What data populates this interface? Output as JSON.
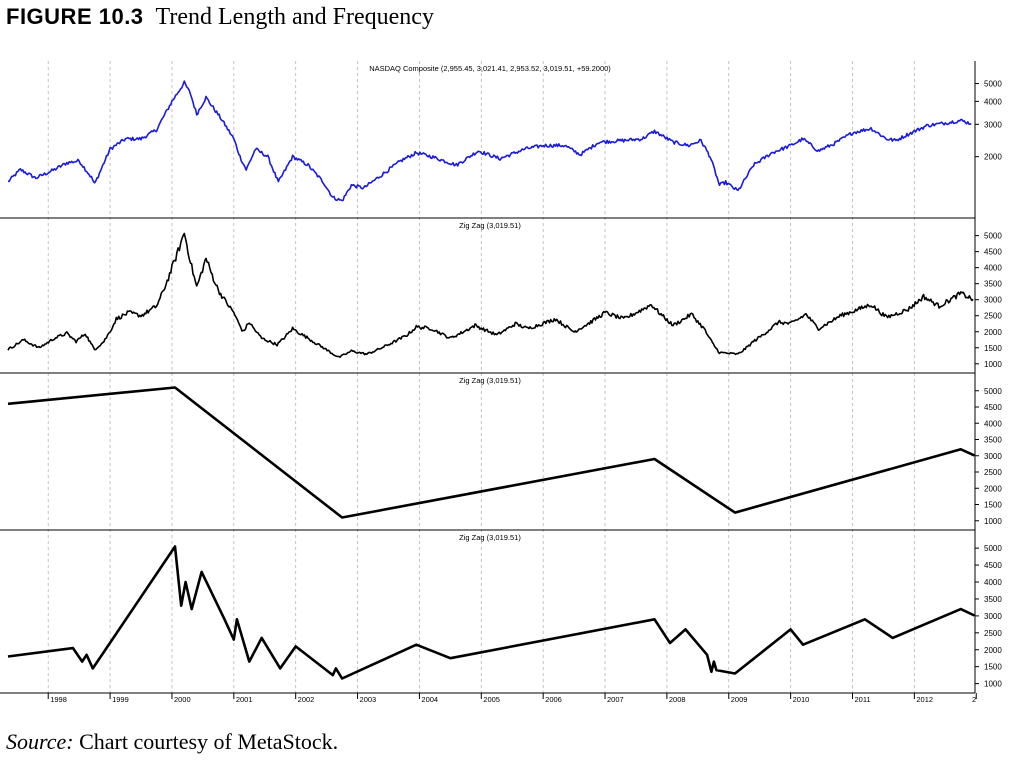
{
  "figure": {
    "number": "FIGURE 10.3",
    "title": "Trend Length and Frequency"
  },
  "caption": {
    "label": "Source:",
    "text": "Chart courtesy of MetaStock."
  },
  "colors": {
    "price_line": "#1a1adf",
    "zigzag_line": "#000000",
    "grid": "#b4b4b4"
  },
  "chart_data": [
    {
      "type": "line",
      "title": "NASDAQ Composite (2,955.45, 3,021.41, 2,953.52, 3,019.51, +59.2000)",
      "scale": "log",
      "ylim": [
        1000,
        6000
      ],
      "y_ticks": [
        2000,
        3000,
        4000,
        5000
      ],
      "grid": "vertical",
      "series": [
        {
          "noise": 0.022,
          "points": [
            [
              1997.35,
              1460
            ],
            [
              1997.55,
              1700
            ],
            [
              1997.8,
              1530
            ],
            [
              1998.1,
              1700
            ],
            [
              1998.3,
              1850
            ],
            [
              1998.5,
              1900
            ],
            [
              1998.7,
              1540
            ],
            [
              1998.75,
              1420
            ],
            [
              1999.0,
              2200
            ],
            [
              1999.25,
              2500
            ],
            [
              1999.5,
              2500
            ],
            [
              1999.75,
              2800
            ],
            [
              2000.0,
              4000
            ],
            [
              2000.2,
              5050
            ],
            [
              2000.3,
              4400
            ],
            [
              2000.4,
              3400
            ],
            [
              2000.55,
              4200
            ],
            [
              2000.8,
              3200
            ],
            [
              2001.0,
              2500
            ],
            [
              2001.1,
              2000
            ],
            [
              2001.2,
              1700
            ],
            [
              2001.35,
              2200
            ],
            [
              2001.55,
              2000
            ],
            [
              2001.72,
              1450
            ],
            [
              2001.95,
              2000
            ],
            [
              2002.2,
              1800
            ],
            [
              2002.45,
              1450
            ],
            [
              2002.6,
              1200
            ],
            [
              2002.75,
              1150
            ],
            [
              2002.9,
              1400
            ],
            [
              2003.1,
              1350
            ],
            [
              2003.4,
              1600
            ],
            [
              2003.7,
              1900
            ],
            [
              2003.95,
              2100
            ],
            [
              2004.2,
              2000
            ],
            [
              2004.6,
              1800
            ],
            [
              2004.95,
              2150
            ],
            [
              2005.3,
              1950
            ],
            [
              2005.7,
              2200
            ],
            [
              2006.0,
              2300
            ],
            [
              2006.35,
              2300
            ],
            [
              2006.6,
              2050
            ],
            [
              2006.9,
              2400
            ],
            [
              2007.3,
              2450
            ],
            [
              2007.6,
              2500
            ],
            [
              2007.8,
              2750
            ],
            [
              2008.1,
              2400
            ],
            [
              2008.35,
              2300
            ],
            [
              2008.55,
              2450
            ],
            [
              2008.7,
              2000
            ],
            [
              2008.85,
              1400
            ],
            [
              2008.95,
              1450
            ],
            [
              2009.15,
              1300
            ],
            [
              2009.4,
              1800
            ],
            [
              2009.7,
              2100
            ],
            [
              2010.0,
              2300
            ],
            [
              2010.2,
              2500
            ],
            [
              2010.45,
              2150
            ],
            [
              2010.7,
              2350
            ],
            [
              2011.0,
              2700
            ],
            [
              2011.3,
              2850
            ],
            [
              2011.55,
              2500
            ],
            [
              2011.7,
              2450
            ],
            [
              2011.9,
              2650
            ],
            [
              2012.2,
              2950
            ],
            [
              2012.5,
              3050
            ],
            [
              2012.75,
              3150
            ],
            [
              2012.92,
              3020
            ]
          ]
        }
      ]
    },
    {
      "type": "line",
      "title": "Zig Zag (3,019.51)",
      "ylim": [
        900,
        5300
      ],
      "y_ticks": [
        1000,
        1500,
        2000,
        2500,
        3000,
        3500,
        4000,
        4500,
        5000
      ],
      "series": [
        {
          "noise": 0.025,
          "points": [
            [
              1997.35,
              1450
            ],
            [
              1997.6,
              1750
            ],
            [
              1997.85,
              1500
            ],
            [
              1998.1,
              1800
            ],
            [
              1998.3,
              1950
            ],
            [
              1998.45,
              1700
            ],
            [
              1998.6,
              1950
            ],
            [
              1998.75,
              1450
            ],
            [
              1998.9,
              1700
            ],
            [
              1999.1,
              2400
            ],
            [
              1999.3,
              2600
            ],
            [
              1999.5,
              2500
            ],
            [
              1999.75,
              2800
            ],
            [
              2000.0,
              4000
            ],
            [
              2000.2,
              5100
            ],
            [
              2000.3,
              4200
            ],
            [
              2000.4,
              3400
            ],
            [
              2000.55,
              4300
            ],
            [
              2000.75,
              3300
            ],
            [
              2001.0,
              2600
            ],
            [
              2001.15,
              2000
            ],
            [
              2001.25,
              2300
            ],
            [
              2001.45,
              1800
            ],
            [
              2001.7,
              1600
            ],
            [
              2001.95,
              2100
            ],
            [
              2002.2,
              1800
            ],
            [
              2002.45,
              1500
            ],
            [
              2002.7,
              1200
            ],
            [
              2002.9,
              1400
            ],
            [
              2003.15,
              1300
            ],
            [
              2003.5,
              1600
            ],
            [
              2003.8,
              1900
            ],
            [
              2003.95,
              2150
            ],
            [
              2004.2,
              2100
            ],
            [
              2004.5,
              1800
            ],
            [
              2004.9,
              2200
            ],
            [
              2005.25,
              1900
            ],
            [
              2005.55,
              2250
            ],
            [
              2005.75,
              2100
            ],
            [
              2006.2,
              2400
            ],
            [
              2006.5,
              2000
            ],
            [
              2007.0,
              2600
            ],
            [
              2007.3,
              2400
            ],
            [
              2007.75,
              2850
            ],
            [
              2008.1,
              2200
            ],
            [
              2008.4,
              2550
            ],
            [
              2008.6,
              2100
            ],
            [
              2008.85,
              1350
            ],
            [
              2009.15,
              1300
            ],
            [
              2009.4,
              1700
            ],
            [
              2009.8,
              2300
            ],
            [
              2010.0,
              2250
            ],
            [
              2010.25,
              2550
            ],
            [
              2010.45,
              2100
            ],
            [
              2010.8,
              2500
            ],
            [
              2011.3,
              2850
            ],
            [
              2011.55,
              2450
            ],
            [
              2011.9,
              2700
            ],
            [
              2012.15,
              3100
            ],
            [
              2012.4,
              2800
            ],
            [
              2012.75,
              3200
            ],
            [
              2012.95,
              3010
            ]
          ]
        }
      ]
    },
    {
      "type": "line",
      "title": "Zig Zag (3,019.51)",
      "ylim": [
        900,
        5300
      ],
      "y_ticks": [
        1000,
        1500,
        2000,
        2500,
        3000,
        3500,
        4000,
        4500,
        5000
      ],
      "series": [
        {
          "noise": 0,
          "width": 2.6,
          "points": [
            [
              1997.35,
              4600
            ],
            [
              2000.05,
              5100
            ],
            [
              2002.75,
              1100
            ],
            [
              2007.8,
              2900
            ],
            [
              2009.1,
              1250
            ],
            [
              2012.75,
              3200
            ],
            [
              2012.97,
              3010
            ]
          ]
        }
      ]
    },
    {
      "type": "line",
      "title": "Zig Zag (3,019.51)",
      "ylim": [
        900,
        5300
      ],
      "y_ticks": [
        1000,
        1500,
        2000,
        2500,
        3000,
        3500,
        4000,
        4500,
        5000
      ],
      "series": [
        {
          "noise": 0,
          "width": 2.6,
          "points": [
            [
              1997.35,
              1800
            ],
            [
              1998.4,
              2050
            ],
            [
              1998.55,
              1650
            ],
            [
              1998.62,
              1850
            ],
            [
              1998.72,
              1450
            ],
            [
              2000.05,
              5050
            ],
            [
              2000.15,
              3300
            ],
            [
              2000.22,
              4000
            ],
            [
              2000.32,
              3200
            ],
            [
              2000.48,
              4300
            ],
            [
              2000.85,
              2900
            ],
            [
              2001.0,
              2300
            ],
            [
              2001.05,
              2900
            ],
            [
              2001.25,
              1650
            ],
            [
              2001.45,
              2350
            ],
            [
              2001.75,
              1450
            ],
            [
              2002.0,
              2100
            ],
            [
              2002.6,
              1250
            ],
            [
              2002.65,
              1450
            ],
            [
              2002.75,
              1150
            ],
            [
              2003.95,
              2150
            ],
            [
              2004.5,
              1750
            ],
            [
              2007.8,
              2900
            ],
            [
              2008.05,
              2200
            ],
            [
              2008.3,
              2600
            ],
            [
              2008.65,
              1850
            ],
            [
              2008.72,
              1350
            ],
            [
              2008.76,
              1650
            ],
            [
              2008.8,
              1400
            ],
            [
              2009.1,
              1300
            ],
            [
              2010.0,
              2600
            ],
            [
              2010.2,
              2150
            ],
            [
              2011.2,
              2900
            ],
            [
              2011.65,
              2350
            ],
            [
              2012.75,
              3200
            ],
            [
              2012.97,
              3010
            ]
          ]
        }
      ]
    }
  ],
  "x_axis": {
    "year_labels": [
      "1998",
      "1999",
      "2000",
      "2001",
      "2002",
      "2003",
      "2004",
      "2005",
      "2006",
      "2007",
      "2008",
      "2009",
      "2010",
      "2011",
      "2012",
      "2"
    ]
  }
}
